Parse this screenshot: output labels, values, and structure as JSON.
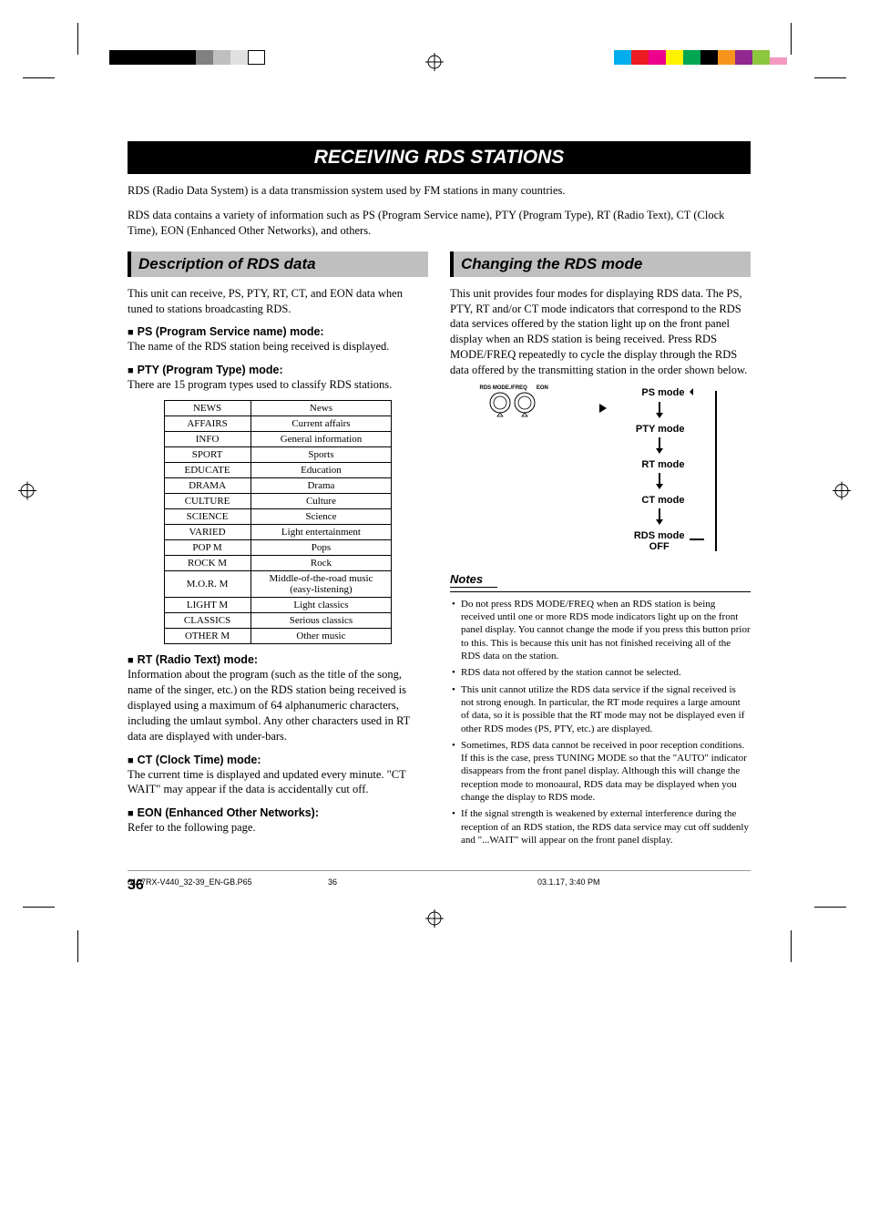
{
  "print": {
    "tl_bar_colors": [
      "#000000",
      "#000000",
      "#000000",
      "#000000",
      "#000000",
      "#808080",
      "#bfbfbf",
      "#e0e0e0"
    ],
    "tr_bar_colors": [
      "#00aeef",
      "#ed1c24",
      "#ec008c",
      "#fff200",
      "#00a651",
      "#000000",
      "#f7941d",
      "#92278f",
      "#8dc63f",
      "#f49ac1"
    ],
    "tr_half_last": true
  },
  "title": "RECEIVING RDS STATIONS",
  "intro1": "RDS (Radio Data System) is a data transmission system used by FM stations in many countries.",
  "intro2": "RDS data contains a variety of information such as PS (Program Service name), PTY (Program Type), RT (Radio Text), CT (Clock Time), EON (Enhanced Other Networks), and others.",
  "left": {
    "heading": "Description of RDS data",
    "p1": "This unit can receive, PS, PTY, RT, CT, and EON data when tuned to stations broadcasting RDS.",
    "ps_h": "PS (Program Service name) mode:",
    "ps_t": "The name of the RDS station being received is displayed.",
    "pty_h": "PTY (Program Type) mode:",
    "pty_t": "There are 15 program types used to classify RDS stations.",
    "table": [
      [
        "NEWS",
        "News"
      ],
      [
        "AFFAIRS",
        "Current affairs"
      ],
      [
        "INFO",
        "General information"
      ],
      [
        "SPORT",
        "Sports"
      ],
      [
        "EDUCATE",
        "Education"
      ],
      [
        "DRAMA",
        "Drama"
      ],
      [
        "CULTURE",
        "Culture"
      ],
      [
        "SCIENCE",
        "Science"
      ],
      [
        "VARIED",
        "Light entertainment"
      ],
      [
        "POP M",
        "Pops"
      ],
      [
        "ROCK M",
        "Rock"
      ],
      [
        "M.O.R. M",
        "Middle-of-the-road music (easy-listening)"
      ],
      [
        "LIGHT M",
        "Light classics"
      ],
      [
        "CLASSICS",
        "Serious classics"
      ],
      [
        "OTHER M",
        "Other music"
      ]
    ],
    "rt_h": "RT (Radio Text) mode:",
    "rt_t": "Information about the program (such as the title of the song, name of the singer, etc.) on the RDS station being received is displayed using a maximum of 64 alphanumeric characters, including the umlaut symbol. Any other characters used in RT data are displayed with under-bars.",
    "ct_h": "CT (Clock Time) mode:",
    "ct_t": "The current time is displayed and updated every minute. \"CT WAIT\" may appear if the data is accidentally cut off.",
    "eon_h": "EON (Enhanced Other Networks):",
    "eon_t": "Refer to the following page."
  },
  "right": {
    "heading": "Changing the RDS mode",
    "p1": "This unit provides four modes for displaying RDS data. The PS, PTY, RT and/or CT mode indicators that correspond to the RDS data services offered by the station light up on the front panel display when an RDS station is being received. Press RDS MODE/FREQ repeatedly to cycle the display through the RDS data offered by the transmitting station in the order shown below.",
    "dial_label_1": "RDS MODE./FREQ",
    "dial_label_2": "EON",
    "modes": [
      "PS mode",
      "PTY mode",
      "RT mode",
      "CT mode",
      "RDS mode OFF"
    ],
    "notes_h": "Notes",
    "notes": [
      "Do not press RDS MODE/FREQ when an RDS station is being received until one or more RDS mode indicators light up on the front panel display. You cannot change the mode if you press this button prior to this. This is because this unit has not finished receiving all of the RDS data on the station.",
      "RDS data not offered by the station cannot be selected.",
      "This unit cannot utilize the RDS data service if the signal received is not strong enough. In particular, the RT mode requires a large amount of data, so it is possible that the RT mode may not be displayed even if other RDS modes (PS, PTY, etc.) are displayed.",
      "Sometimes, RDS data cannot be received in poor reception conditions. If this is the case, press TUNING MODE so that the \"AUTO\" indicator disappears from the front panel display. Although this will change the reception mode to monoaural, RDS data may be displayed when you change the display to RDS mode.",
      "If the signal strength is weakened by external interference during the reception of an RDS station, the RDS data service may cut off suddenly and \"...WAIT\" will appear on the front panel display."
    ]
  },
  "page_number": "36",
  "footer": {
    "file": "0107RX-V440_32-39_EN-GB.P65",
    "page": "36",
    "date": "03.1.17, 3:40 PM"
  }
}
